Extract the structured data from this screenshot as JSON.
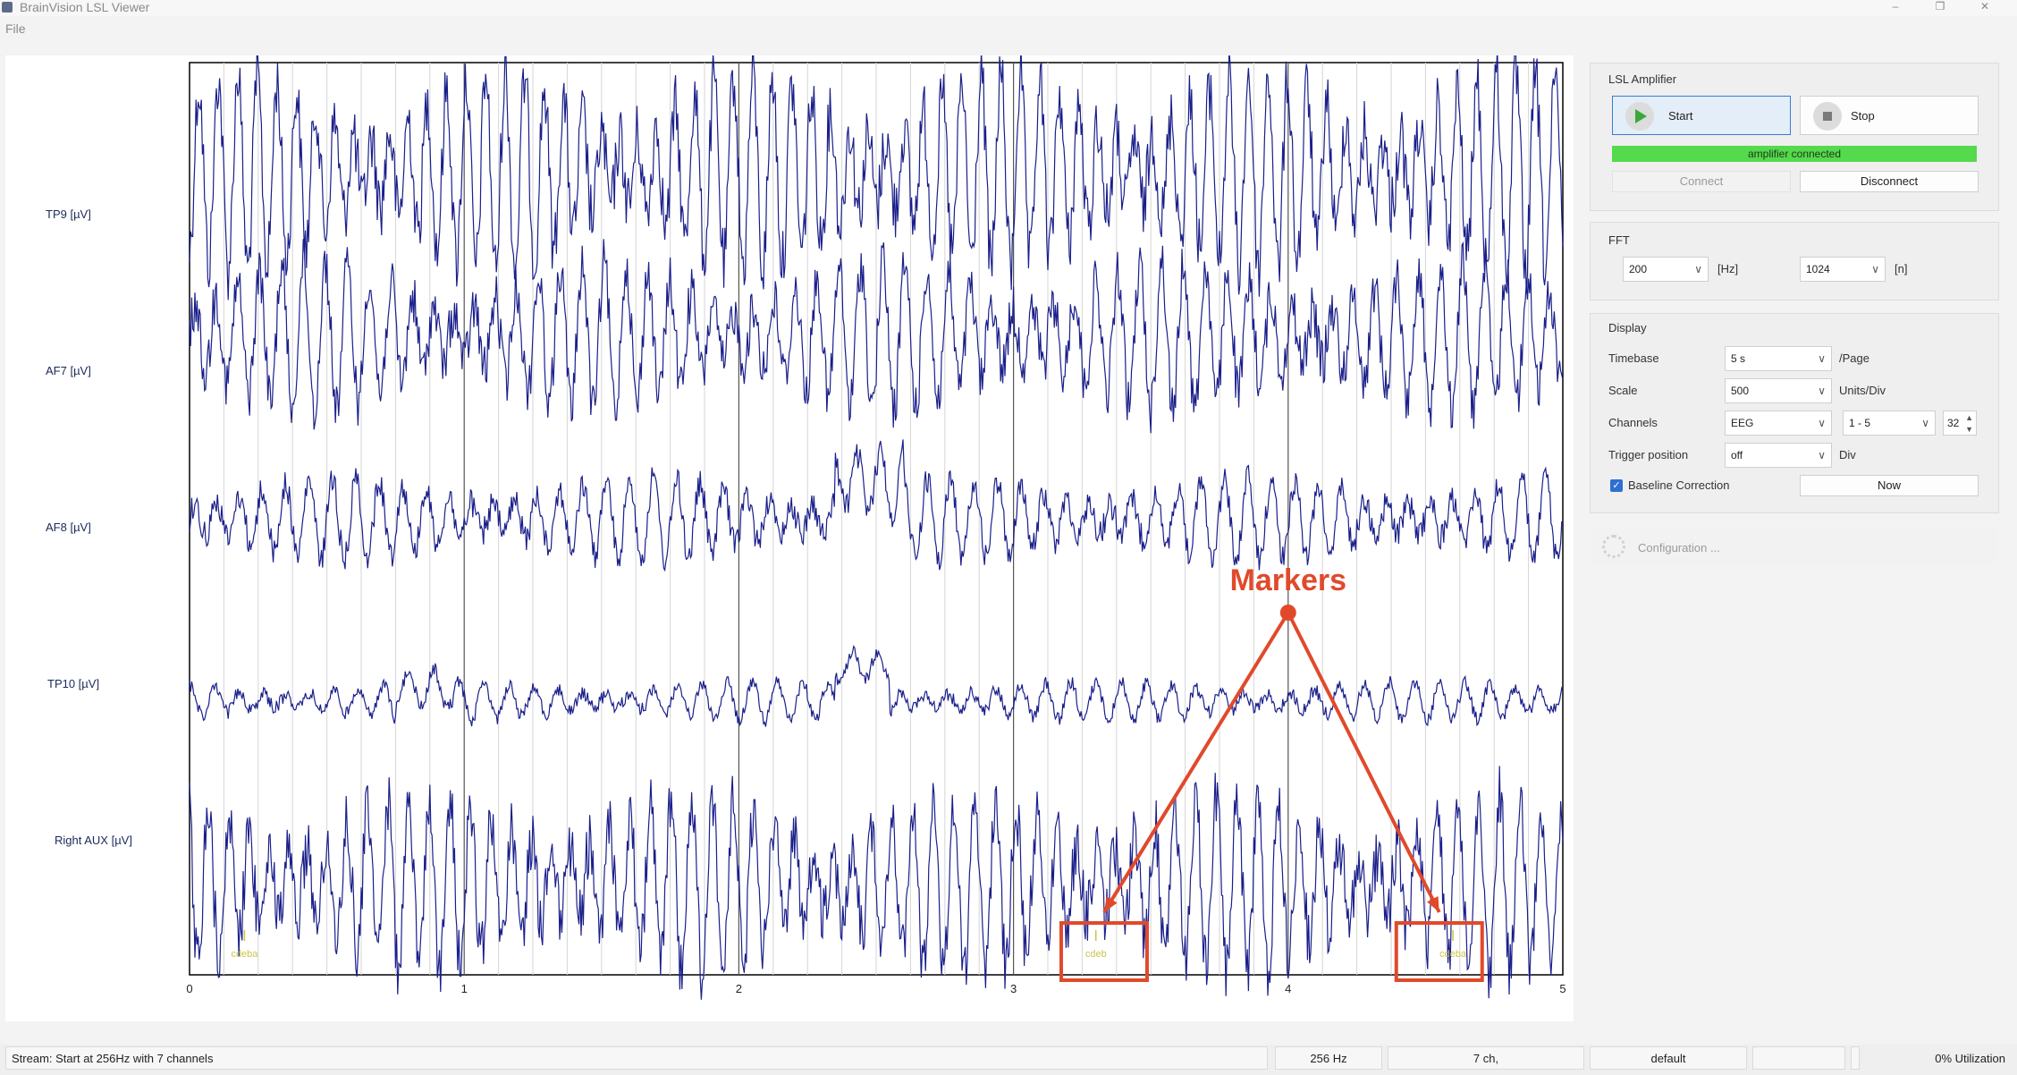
{
  "window": {
    "title": "BrainVision LSL Viewer",
    "minimize": "–",
    "maximize": "❐",
    "close": "✕"
  },
  "menu": {
    "file": "File"
  },
  "plot": {
    "channels": [
      "TP9 [µV]",
      "AF7 [µV]",
      "AF8 [µV]",
      "TP10 [µV]",
      "Right AUX [µV]"
    ],
    "x_ticks": [
      "0",
      "1",
      "2",
      "3",
      "4",
      "5"
    ],
    "marker_labels": [
      "cdeba",
      "cdeb",
      "cdeba"
    ],
    "annotation": {
      "text": "Markers",
      "color": "#e04a2b"
    },
    "trace_color": "#1a1f8a",
    "marker_color": "#c9c44a"
  },
  "chart_data": {
    "type": "line",
    "xlabel": "",
    "ylabel": "",
    "xlim": [
      0,
      5
    ],
    "x_ticks": [
      0,
      1,
      2,
      3,
      4,
      5
    ],
    "series": [
      {
        "name": "TP9 [µV]"
      },
      {
        "name": "AF7 [µV]"
      },
      {
        "name": "AF8 [µV]"
      },
      {
        "name": "TP10 [µV]"
      },
      {
        "name": "Right AUX [µV]"
      }
    ],
    "markers_x": [
      0.2,
      3.3,
      4.6
    ]
  },
  "amplifier": {
    "title": "LSL Amplifier",
    "start": "Start",
    "stop": "Stop",
    "status": "amplifier connected",
    "connect": "Connect",
    "disconnect": "Disconnect"
  },
  "fft": {
    "title": "FFT",
    "freq_value": "200",
    "freq_unit": "[Hz]",
    "n_value": "1024",
    "n_unit": "[n]"
  },
  "display": {
    "title": "Display",
    "timebase_label": "Timebase",
    "timebase_value": "5 s",
    "timebase_unit": "/Page",
    "scale_label": "Scale",
    "scale_value": "500",
    "scale_unit": "Units/Div",
    "channels_label": "Channels",
    "channels_type": "EEG",
    "channels_range": "1 - 5",
    "channels_count": "32",
    "trigger_label": "Trigger position",
    "trigger_value": "off",
    "trigger_unit": "Div",
    "baseline_label": "Baseline Correction",
    "now_button": "Now"
  },
  "configuration": {
    "label": "Configuration ..."
  },
  "statusbar": {
    "stream": "Stream: Start at 256Hz with 7 channels",
    "rate": "256 Hz",
    "channels": "7 ch,",
    "profile": "default",
    "utilization": "0% Utilization"
  }
}
